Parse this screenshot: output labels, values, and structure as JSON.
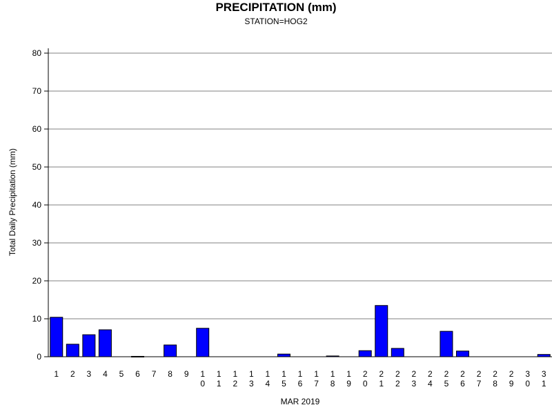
{
  "chart_data": {
    "type": "bar",
    "title": "PRECIPITATION (mm)",
    "subtitle": "STATION=HOG2",
    "xlabel": "MAR 2019",
    "ylabel": "Total Daily Precipitation (mm)",
    "ylim": [
      0,
      80
    ],
    "yticks": [
      0,
      10,
      20,
      30,
      40,
      50,
      60,
      70,
      80
    ],
    "grid": true,
    "bar_color": "#0000ff",
    "categories": [
      "1",
      "2",
      "3",
      "4",
      "5",
      "6",
      "7",
      "8",
      "9",
      "10",
      "11",
      "12",
      "13",
      "14",
      "15",
      "16",
      "17",
      "18",
      "19",
      "20",
      "21",
      "22",
      "23",
      "24",
      "25",
      "26",
      "27",
      "28",
      "29",
      "30",
      "31"
    ],
    "values": [
      10.4,
      3.3,
      5.8,
      7.1,
      0,
      0.1,
      0,
      3.1,
      0,
      7.5,
      0,
      0,
      0,
      0,
      0.7,
      0,
      0,
      0.2,
      0,
      1.6,
      13.5,
      2.2,
      0,
      0,
      6.7,
      1.5,
      0,
      0,
      0,
      0,
      0.6
    ]
  }
}
